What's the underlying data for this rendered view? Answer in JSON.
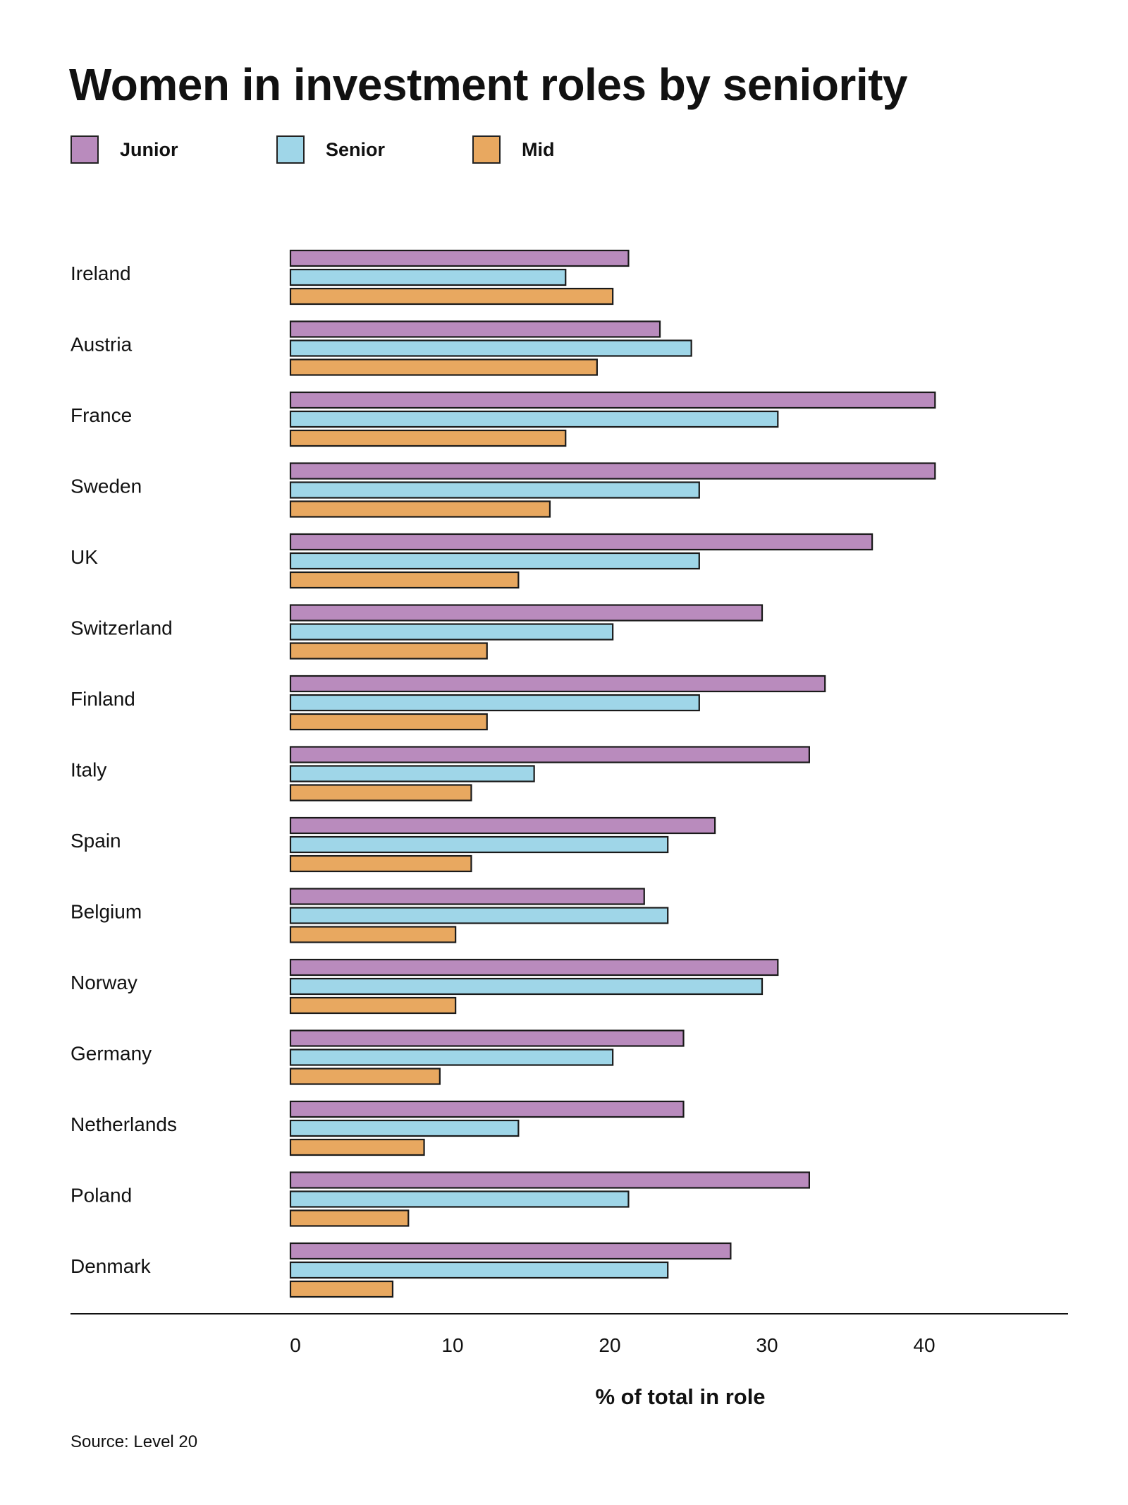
{
  "chart_data": {
    "type": "bar",
    "orientation": "horizontal",
    "title": "Women in investment roles by seniority",
    "xlabel": "% of total in role",
    "ylabel": "",
    "xlim": [
      0,
      49
    ],
    "xticks": [
      0,
      10,
      20,
      30,
      40
    ],
    "grid": false,
    "legend_position": "top-left",
    "categories": [
      "Ireland",
      "Austria",
      "France",
      "Sweden",
      "UK",
      "Switzerland",
      "Finland",
      "Italy",
      "Spain",
      "Belgium",
      "Norway",
      "Germany",
      "Netherlands",
      "Poland",
      "Denmark"
    ],
    "series": [
      {
        "name": "Junior",
        "color": "#b98bbd",
        "values": [
          21.5,
          23.5,
          41,
          41,
          37,
          30,
          34,
          33,
          27,
          22.5,
          31,
          25,
          25,
          33,
          28
        ]
      },
      {
        "name": "Senior",
        "color": "#9fd6e8",
        "values": [
          17.5,
          25.5,
          31,
          26,
          26,
          20.5,
          26,
          15.5,
          24,
          24,
          30,
          20.5,
          14.5,
          21.5,
          24
        ]
      },
      {
        "name": "Mid",
        "color": "#e8a860",
        "values": [
          20.5,
          19.5,
          17.5,
          16.5,
          14.5,
          12.5,
          12.5,
          11.5,
          11.5,
          10.5,
          10.5,
          9.5,
          8.5,
          7.5,
          6.5
        ]
      }
    ],
    "source": "Source: Level 20"
  },
  "legend": [
    {
      "label": "Junior",
      "color": "#b98bbd"
    },
    {
      "label": "Senior",
      "color": "#9fd6e8"
    },
    {
      "label": "Mid",
      "color": "#e8a860"
    }
  ]
}
